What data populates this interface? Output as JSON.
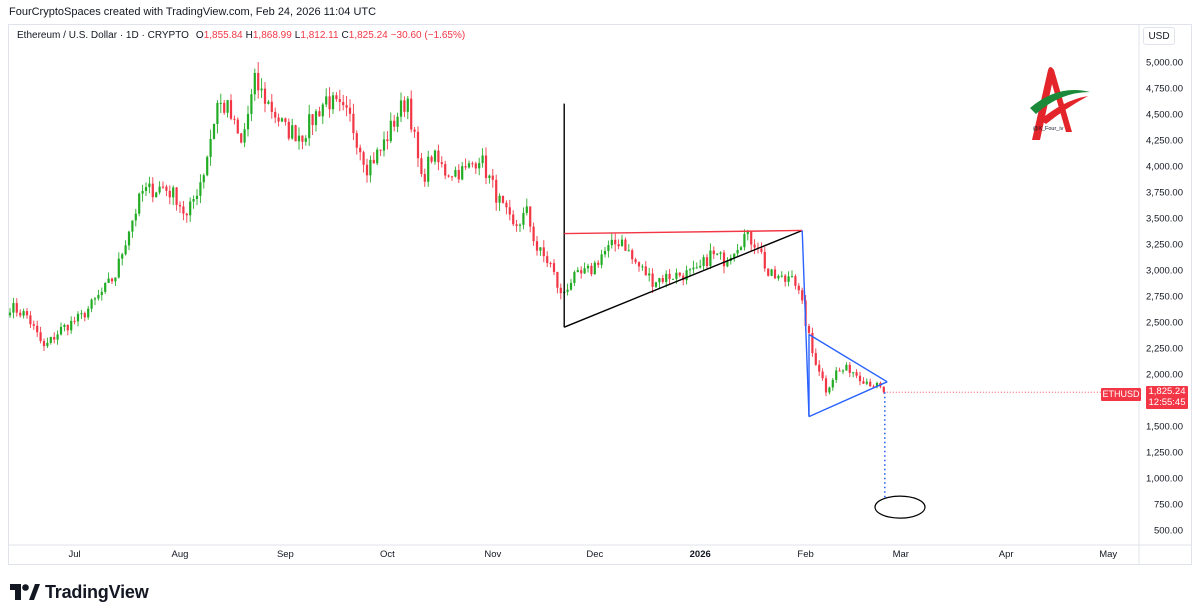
{
  "header": {
    "credit": "FourCryptoSpaces created with TradingView.com, Feb 24, 2026 11:04 UTC"
  },
  "legend": {
    "symbol": "Ethereum / U.S. Dollar · 1D · CRYPTO",
    "open_label": "O",
    "open": "1,855.84",
    "high_label": "H",
    "high": "1,868.99",
    "low_label": "L",
    "low": "1,812.11",
    "close_label": "C",
    "close": "1,825.24",
    "change": "−30.60 (−1.65%)"
  },
  "toolbar": {
    "currency": "USD"
  },
  "last_price": {
    "symbol": "ETHUSD",
    "price": "1,825.24",
    "countdown": "12:55:45"
  },
  "watermark": {
    "handle": "@X_Four_iv"
  },
  "footer": {
    "brand": "TradingView"
  },
  "colors": {
    "up": "#089981",
    "up_fill": "#22ab24",
    "down": "#f23645",
    "triangle1": "#000000",
    "triangle1_top": "#f23645",
    "triangle2": "#2962ff",
    "projection": "#2962ff",
    "target": "#000000"
  },
  "chart_data": {
    "type": "candlestick",
    "ylim": [
      400,
      5200
    ],
    "y_ticks": [
      "5,000.00",
      "4,750.00",
      "4,500.00",
      "4,250.00",
      "4,000.00",
      "3,750.00",
      "3,500.00",
      "3,250.00",
      "3,000.00",
      "2,750.00",
      "2,500.00",
      "2,250.00",
      "2,000.00",
      "1,750.00",
      "1,500.00",
      "1,250.00",
      "1,000.00",
      "750.00",
      "500.00"
    ],
    "y_tick_values": [
      5000,
      4750,
      4500,
      4250,
      4000,
      3750,
      3500,
      3250,
      3000,
      2750,
      2500,
      2250,
      2000,
      1750,
      1500,
      1250,
      1000,
      750,
      500
    ],
    "x_ticks": [
      "Jul",
      "Aug",
      "Sep",
      "Oct",
      "Nov",
      "Dec",
      "2026",
      "Feb",
      "Mar",
      "Apr",
      "May"
    ],
    "x_tick_dates": [
      "2025-07-01",
      "2025-08-01",
      "2025-09-01",
      "2025-10-01",
      "2025-11-01",
      "2025-12-01",
      "2026-01-01",
      "2026-02-01",
      "2026-03-01",
      "2026-04-01",
      "2026-05-01"
    ],
    "x_tick_bold": [
      false,
      false,
      false,
      false,
      false,
      false,
      true,
      false,
      false,
      false,
      false
    ],
    "range_start": "2025-06-12",
    "anchors": [
      {
        "d": "2025-06-12",
        "p": 2650
      },
      {
        "d": "2025-06-17",
        "p": 2560
      },
      {
        "d": "2025-06-22",
        "p": 2250
      },
      {
        "d": "2025-06-27",
        "p": 2430
      },
      {
        "d": "2025-07-03",
        "p": 2550
      },
      {
        "d": "2025-07-09",
        "p": 2780
      },
      {
        "d": "2025-07-13",
        "p": 2950
      },
      {
        "d": "2025-07-17",
        "p": 3400
      },
      {
        "d": "2025-07-21",
        "p": 3750
      },
      {
        "d": "2025-07-27",
        "p": 3800
      },
      {
        "d": "2025-07-31",
        "p": 3700
      },
      {
        "d": "2025-08-03",
        "p": 3500
      },
      {
        "d": "2025-08-08",
        "p": 3950
      },
      {
        "d": "2025-08-12",
        "p": 4600
      },
      {
        "d": "2025-08-15",
        "p": 4550
      },
      {
        "d": "2025-08-19",
        "p": 4200
      },
      {
        "d": "2025-08-23",
        "p": 4800
      },
      {
        "d": "2025-08-27",
        "p": 4600
      },
      {
        "d": "2025-09-01",
        "p": 4350
      },
      {
        "d": "2025-09-06",
        "p": 4300
      },
      {
        "d": "2025-09-13",
        "p": 4650
      },
      {
        "d": "2025-09-20",
        "p": 4450
      },
      {
        "d": "2025-09-25",
        "p": 4000
      },
      {
        "d": "2025-09-29",
        "p": 4150
      },
      {
        "d": "2025-10-04",
        "p": 4500
      },
      {
        "d": "2025-10-07",
        "p": 4650
      },
      {
        "d": "2025-10-11",
        "p": 3850
      },
      {
        "d": "2025-10-14",
        "p": 4100
      },
      {
        "d": "2025-10-18",
        "p": 3950
      },
      {
        "d": "2025-10-24",
        "p": 3950
      },
      {
        "d": "2025-10-28",
        "p": 4100
      },
      {
        "d": "2025-11-03",
        "p": 3650
      },
      {
        "d": "2025-11-07",
        "p": 3400
      },
      {
        "d": "2025-11-11",
        "p": 3550
      },
      {
        "d": "2025-11-14",
        "p": 3200
      },
      {
        "d": "2025-11-18",
        "p": 3050
      },
      {
        "d": "2025-11-21",
        "p": 2750
      },
      {
        "d": "2025-11-24",
        "p": 2900
      },
      {
        "d": "2025-11-30",
        "p": 3000
      },
      {
        "d": "2025-12-03",
        "p": 3150
      },
      {
        "d": "2025-12-09",
        "p": 3300
      },
      {
        "d": "2025-12-12",
        "p": 3100
      },
      {
        "d": "2025-12-18",
        "p": 2900
      },
      {
        "d": "2025-12-24",
        "p": 2950
      },
      {
        "d": "2025-12-31",
        "p": 2970
      },
      {
        "d": "2026-01-04",
        "p": 3150
      },
      {
        "d": "2026-01-08",
        "p": 3100
      },
      {
        "d": "2026-01-14",
        "p": 3330
      },
      {
        "d": "2026-01-18",
        "p": 3250
      },
      {
        "d": "2026-01-21",
        "p": 2950
      },
      {
        "d": "2026-01-26",
        "p": 2900
      },
      {
        "d": "2026-01-28",
        "p": 3000
      },
      {
        "d": "2026-01-31",
        "p": 2650
      },
      {
        "d": "2026-02-03",
        "p": 2200
      },
      {
        "d": "2026-02-05",
        "p": 2050
      },
      {
        "d": "2026-02-07",
        "p": 1850
      },
      {
        "d": "2026-02-10",
        "p": 2020
      },
      {
        "d": "2026-02-14",
        "p": 2050
      },
      {
        "d": "2026-02-18",
        "p": 1950
      },
      {
        "d": "2026-02-21",
        "p": 1900
      },
      {
        "d": "2026-02-23",
        "p": 1856
      },
      {
        "d": "2026-02-24",
        "p": 1825
      }
    ],
    "last_close": 1825.24,
    "drawings": {
      "triangle1": {
        "vertical_top": 4600,
        "apex": 3380,
        "base_bottom": 2450,
        "start": "2025-11-22",
        "end": "2026-01-31"
      },
      "triangle2": {
        "top": 2380,
        "bottom": 1590,
        "apex": 1925,
        "start": "2026-02-02",
        "end": "2026-02-25"
      },
      "projection": {
        "from": 1825,
        "to": 800,
        "date": "2026-02-24"
      },
      "target_ellipse": {
        "center_price": 720,
        "center_date": "2026-02-27"
      }
    }
  }
}
